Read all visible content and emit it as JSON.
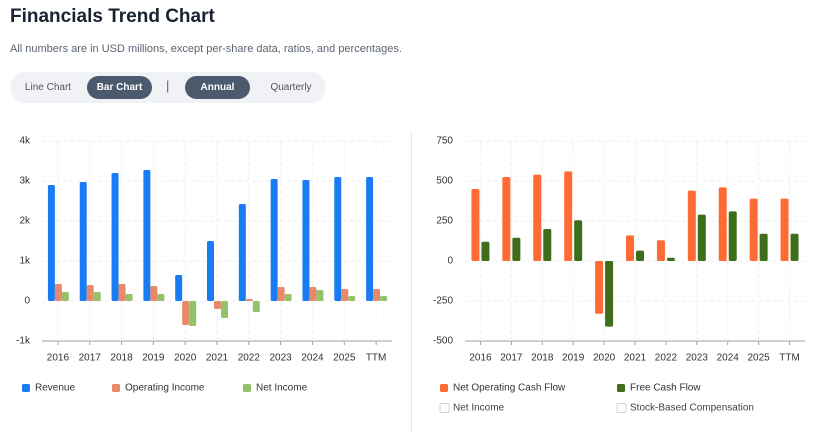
{
  "header": {
    "title": "Financials Trend Chart",
    "subtitle": "All numbers are in USD millions, except per-share data, ratios, and percentages."
  },
  "controls": {
    "chart_type": {
      "options": [
        "Line Chart",
        "Bar Chart"
      ],
      "active": 1
    },
    "period": {
      "options": [
        "Annual",
        "Quarterly"
      ],
      "active": 0
    },
    "separator": "|"
  },
  "chart_data": [
    {
      "type": "bar",
      "categories": [
        "2016",
        "2017",
        "2018",
        "2019",
        "2020",
        "2021",
        "2022",
        "2023",
        "2024",
        "2025",
        "TTM"
      ],
      "series": [
        {
          "name": "Revenue",
          "color": "#1a7cf5",
          "values": [
            2900,
            2975,
            3200,
            3275,
            650,
            1500,
            2425,
            3050,
            3025,
            3100,
            3100
          ]
        },
        {
          "name": "Operating Income",
          "color": "#e8896a",
          "values": [
            425,
            400,
            425,
            375,
            -600,
            -200,
            50,
            350,
            350,
            300,
            300
          ]
        },
        {
          "name": "Net Income",
          "color": "#93c26b",
          "values": [
            225,
            225,
            175,
            175,
            -625,
            -425,
            -275,
            175,
            275,
            125,
            125
          ]
        }
      ],
      "ylim": [
        -1000,
        4000
      ],
      "yticks": [
        {
          "value": -1000,
          "label": "-1k"
        },
        0,
        {
          "value": 1000,
          "label": "1k"
        },
        {
          "value": 2000,
          "label": "2k"
        },
        {
          "value": 3000,
          "label": "3k"
        },
        {
          "value": 4000,
          "label": "4k"
        }
      ],
      "grid": true
    },
    {
      "type": "bar",
      "categories": [
        "2016",
        "2017",
        "2018",
        "2019",
        "2020",
        "2021",
        "2022",
        "2023",
        "2024",
        "2025",
        "TTM"
      ],
      "series": [
        {
          "name": "Net Operating Cash Flow",
          "color": "#ff6b35",
          "values": [
            450,
            525,
            540,
            560,
            -330,
            160,
            130,
            440,
            460,
            390,
            390
          ]
        },
        {
          "name": "Free Cash Flow",
          "color": "#3f6e1a",
          "values": [
            120,
            145,
            200,
            255,
            -410,
            65,
            20,
            290,
            310,
            170,
            170
          ]
        }
      ],
      "hidden_series": [
        {
          "name": "Net Income"
        },
        {
          "name": "Stock-Based Compensation"
        }
      ],
      "ylim": [
        -500,
        750
      ],
      "yticks": [
        -500,
        -250,
        0,
        250,
        500,
        750
      ],
      "grid": true
    }
  ]
}
